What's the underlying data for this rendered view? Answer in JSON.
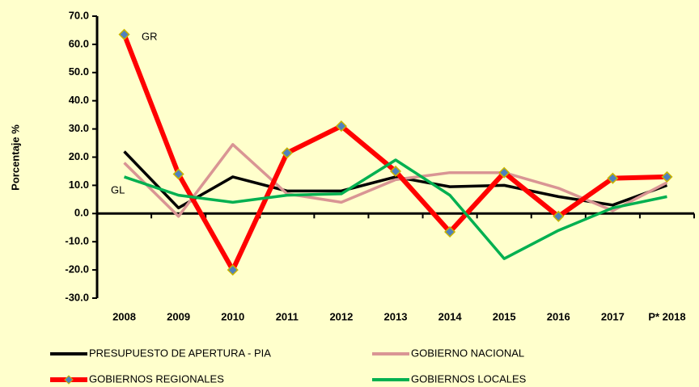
{
  "chart_data": {
    "type": "line",
    "y_label": "Porcentaje %",
    "categories": [
      "2008",
      "2009",
      "2010",
      "2011",
      "2012",
      "2013",
      "2014",
      "2015",
      "2016",
      "2017",
      "P* 2018"
    ],
    "series": [
      {
        "name": "PRESUPUESTO DE APERTURA - PIA",
        "color": "#000000",
        "values": [
          22,
          2,
          13,
          8,
          8,
          13,
          9.5,
          10,
          6,
          3,
          10
        ]
      },
      {
        "name": "GOBIERNO NACIONAL",
        "color": "#d99594",
        "values": [
          18,
          -1,
          24.5,
          7,
          4,
          12,
          14.5,
          14.5,
          9,
          1,
          11
        ]
      },
      {
        "name": "GOBIERNOS REGIONALES",
        "color": "#ff0000",
        "marker": "diamond",
        "values": [
          63.5,
          14,
          -20,
          21.5,
          31,
          15,
          -6.5,
          14.5,
          -1,
          12.5,
          13
        ]
      },
      {
        "name": "GOBIERNOS LOCALES",
        "color": "#00b050",
        "values": [
          13,
          6.5,
          4,
          6.5,
          7,
          19,
          6.5,
          -16,
          -6,
          2,
          6
        ]
      }
    ],
    "annotations": [
      "GR",
      "GL"
    ],
    "ylim": [
      -30,
      70
    ],
    "yticks": [
      {
        "value": -30,
        "label": "-30.0"
      },
      {
        "value": -20,
        "label": "-20.0"
      },
      {
        "value": -10,
        "label": "-10.0"
      },
      {
        "value": 0,
        "label": "0.0"
      },
      {
        "value": 10,
        "label": "10.0"
      },
      {
        "value": 20,
        "label": "20.0"
      },
      {
        "value": 30,
        "label": "30.0"
      },
      {
        "value": 40,
        "label": "40.0"
      },
      {
        "value": 50,
        "label": "50.0"
      },
      {
        "value": 60,
        "label": "60.0"
      },
      {
        "value": 70,
        "label": "70.0"
      }
    ],
    "background": "#ffffcc"
  }
}
